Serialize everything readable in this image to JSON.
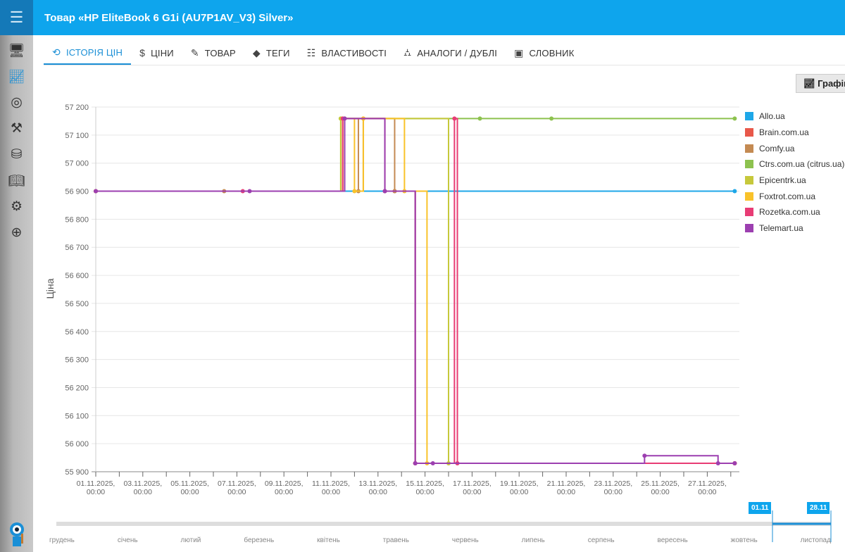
{
  "header": {
    "title": "Товар «HP EliteBook 6 G1i (AU7P1AV_V3) Silver»"
  },
  "sidebar": {
    "items": [
      {
        "icon": "monitor-icon"
      },
      {
        "icon": "chart-icon",
        "active": true
      },
      {
        "icon": "target-icon"
      },
      {
        "icon": "crane-icon"
      },
      {
        "icon": "database-icon"
      },
      {
        "icon": "book-icon"
      },
      {
        "icon": "gear-icon"
      },
      {
        "icon": "lifebuoy-icon"
      }
    ]
  },
  "tabs": [
    {
      "label": "ІСТОРІЯ ЦІН",
      "icon": "history-icon",
      "glyph": "⟲",
      "active": true
    },
    {
      "label": "ЦІНИ",
      "icon": "dollar-icon",
      "glyph": "$"
    },
    {
      "label": "ТОВАР",
      "icon": "pencil-icon",
      "glyph": "✎"
    },
    {
      "label": "ТЕГИ",
      "icon": "tag-icon",
      "glyph": "◆"
    },
    {
      "label": "ВЛАСТИВОСТІ",
      "icon": "sliders-icon",
      "glyph": "☷"
    },
    {
      "label": "АНАЛОГИ / ДУБЛІ",
      "icon": "sitemap-icon",
      "glyph": "⛼"
    },
    {
      "label": "СЛОВНИК",
      "icon": "dictionary-icon",
      "glyph": "▣"
    }
  ],
  "graph_button": {
    "label": "Графік",
    "icon": "line-chart-icon"
  },
  "navigator": {
    "months": [
      "грудень",
      "січень",
      "лютий",
      "березень",
      "квітень",
      "травень",
      "червень",
      "липень",
      "серпень",
      "вересень",
      "жовтень",
      "листопад"
    ],
    "range_start": "01.11",
    "range_end": "28.11"
  },
  "chart_data": {
    "type": "line",
    "step": true,
    "ylabel": "Ціна",
    "ylim": [
      55900,
      57200
    ],
    "yticks": [
      "57 200",
      "57 100",
      "57 000",
      "56 900",
      "56 800",
      "56 700",
      "56 600",
      "56 500",
      "56 400",
      "56 300",
      "56 200",
      "56 100",
      "56 000",
      "55 900"
    ],
    "xticks": [
      "01.11.2025,|00:00",
      "03.11.2025,|00:00",
      "05.11.2025,|00:00",
      "07.11.2025,|00:00",
      "09.11.2025,|00:00",
      "11.11.2025,|00:00",
      "13.11.2025,|00:00",
      "15.11.2025,|00:00",
      "17.11.2025,|00:00",
      "19.11.2025,|00:00",
      "21.11.2025,|00:00",
      "23.11.2025,|00:00",
      "25.11.2025,|00:00",
      "27.11.2025,|00:00"
    ],
    "xlim": [
      "2025-11-01T00:00",
      "2025-11-29T00:00"
    ],
    "grid": true,
    "legend": "right",
    "series": [
      {
        "name": "Allo.ua",
        "color": "#1ea7e8",
        "points": [
          [
            "2025-11-01T00:00",
            56900
          ],
          [
            "2025-11-28T04:00",
            56900
          ]
        ]
      },
      {
        "name": "Brain.com.ua",
        "color": "#e8584a",
        "points": [
          [
            "2025-11-01T00:00",
            56900
          ],
          [
            "2025-11-11T12:00",
            57159
          ],
          [
            "2025-11-13T07:00",
            56900
          ],
          [
            "2025-11-13T17:00",
            56900
          ],
          [
            "2025-11-14T14:00",
            55930
          ],
          [
            "2025-11-28T04:00",
            55930
          ]
        ]
      },
      {
        "name": "Comfy.ua",
        "color": "#c48a52",
        "points": [
          [
            "2025-11-01T00:00",
            56900
          ],
          [
            "2025-11-06T11:00",
            56900
          ],
          [
            "2025-11-11T14:00",
            57159
          ],
          [
            "2025-11-12T04:00",
            56900
          ],
          [
            "2025-11-12T09:00",
            57159
          ],
          [
            "2025-11-13T17:00",
            56900
          ],
          [
            "2025-11-14T14:00",
            55930
          ],
          [
            "2025-11-28T04:00",
            55930
          ]
        ]
      },
      {
        "name": "Ctrs.com.ua (citrus.ua)",
        "color": "#8dc24f",
        "points": [
          [
            "2025-11-01T00:00",
            56900
          ],
          [
            "2025-11-11T10:00",
            57159
          ],
          [
            "2025-11-17T08:00",
            57159
          ],
          [
            "2025-11-20T09:00",
            57159
          ],
          [
            "2025-11-28T04:00",
            57159
          ]
        ]
      },
      {
        "name": "Epicentrk.ua",
        "color": "#c6c83b",
        "points": [
          [
            "2025-11-01T00:00",
            56900
          ],
          [
            "2025-11-11T10:00",
            57159
          ],
          [
            "2025-11-16T00:00",
            55930
          ],
          [
            "2025-11-28T04:00",
            55930
          ]
        ]
      },
      {
        "name": "Foxtrot.com.ua",
        "color": "#f9c22a",
        "points": [
          [
            "2025-11-01T00:00",
            56900
          ],
          [
            "2025-11-11T12:00",
            57159
          ],
          [
            "2025-11-12T00:00",
            56900
          ],
          [
            "2025-11-12T09:00",
            57159
          ],
          [
            "2025-11-14T03:00",
            56900
          ],
          [
            "2025-11-15T02:00",
            55930
          ],
          [
            "2025-11-28T04:00",
            55930
          ]
        ]
      },
      {
        "name": "Rozetka.com.ua",
        "color": "#e83c75",
        "points": [
          [
            "2025-11-01T00:00",
            56900
          ],
          [
            "2025-11-07T06:00",
            56900
          ],
          [
            "2025-11-11T12:00",
            57159
          ],
          [
            "2025-11-13T07:00",
            56900
          ],
          [
            "2025-11-14T14:00",
            55930
          ],
          [
            "2025-11-16T06:00",
            57159
          ],
          [
            "2025-11-16T09:00",
            55930
          ],
          [
            "2025-11-28T04:00",
            55930
          ]
        ]
      },
      {
        "name": "Telemart.ua",
        "color": "#9c3fb0",
        "points": [
          [
            "2025-11-01T00:00",
            56900
          ],
          [
            "2025-11-07T13:00",
            56900
          ],
          [
            "2025-11-11T14:00",
            57159
          ],
          [
            "2025-11-13T07:00",
            56900
          ],
          [
            "2025-11-14T14:00",
            55930
          ],
          [
            "2025-11-15T08:00",
            55930
          ],
          [
            "2025-11-24T08:00",
            55957
          ],
          [
            "2025-11-27T11:00",
            55930
          ],
          [
            "2025-11-28T04:00",
            55930
          ]
        ]
      }
    ]
  }
}
